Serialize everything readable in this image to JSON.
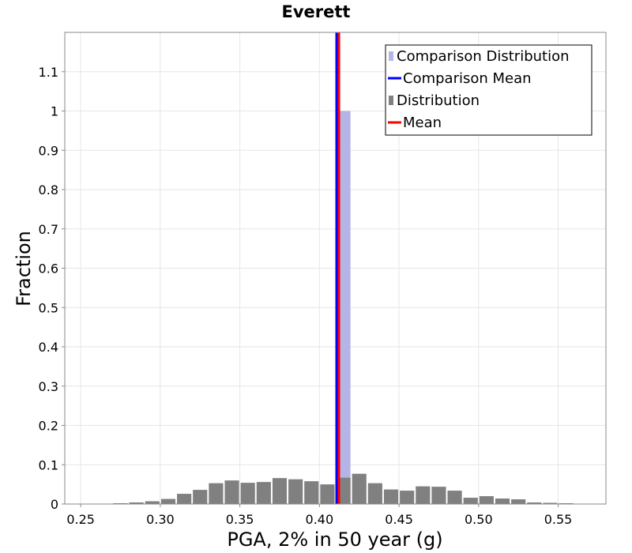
{
  "chart_data": {
    "type": "bar",
    "title": "Everett",
    "xlabel": "PGA, 2% in 50 year (g)",
    "ylabel": "Fraction",
    "xlim": [
      0.24,
      0.58
    ],
    "ylim": [
      0,
      1.2
    ],
    "xticks": [
      0.25,
      0.3,
      0.35,
      0.4,
      0.45,
      0.5,
      0.55
    ],
    "xtick_labels": [
      "0.25",
      "0.30",
      "0.35",
      "0.40",
      "0.45",
      "0.50",
      "0.55"
    ],
    "yticks": [
      0,
      0.1,
      0.2,
      0.3,
      0.4,
      0.5,
      0.6,
      0.7,
      0.8,
      0.9,
      1,
      1.1
    ],
    "ytick_labels": [
      "0",
      "0.1",
      "0.2",
      "0.3",
      "0.4",
      "0.5",
      "0.6",
      "0.7",
      "0.8",
      "0.9",
      "1",
      "1.1"
    ],
    "grid": true,
    "legend_position": "top-right",
    "bin_width": 0.01,
    "series": [
      {
        "name": "Comparison Distribution",
        "kind": "bar",
        "color": "#b4b4e6",
        "x": [
          0.415
        ],
        "values": [
          1.0
        ]
      },
      {
        "name": "Comparison Mean",
        "kind": "vline",
        "color": "#0000ff",
        "x": 0.4115
      },
      {
        "name": "Distribution",
        "kind": "bar",
        "color": "#808080",
        "x": [
          0.255,
          0.265,
          0.275,
          0.285,
          0.295,
          0.305,
          0.315,
          0.325,
          0.335,
          0.345,
          0.355,
          0.365,
          0.375,
          0.385,
          0.395,
          0.405,
          0.415,
          0.425,
          0.435,
          0.445,
          0.455,
          0.465,
          0.475,
          0.485,
          0.495,
          0.505,
          0.515,
          0.525,
          0.535,
          0.545,
          0.555,
          0.565
        ],
        "values": [
          0.001,
          0.001,
          0.002,
          0.004,
          0.007,
          0.013,
          0.026,
          0.036,
          0.053,
          0.06,
          0.054,
          0.056,
          0.066,
          0.063,
          0.058,
          0.05,
          0.067,
          0.077,
          0.053,
          0.037,
          0.034,
          0.045,
          0.044,
          0.034,
          0.016,
          0.02,
          0.014,
          0.012,
          0.004,
          0.003,
          0.002,
          0.001
        ]
      },
      {
        "name": "Mean",
        "kind": "vline",
        "color": "#ff0000",
        "x": 0.4115
      }
    ]
  }
}
